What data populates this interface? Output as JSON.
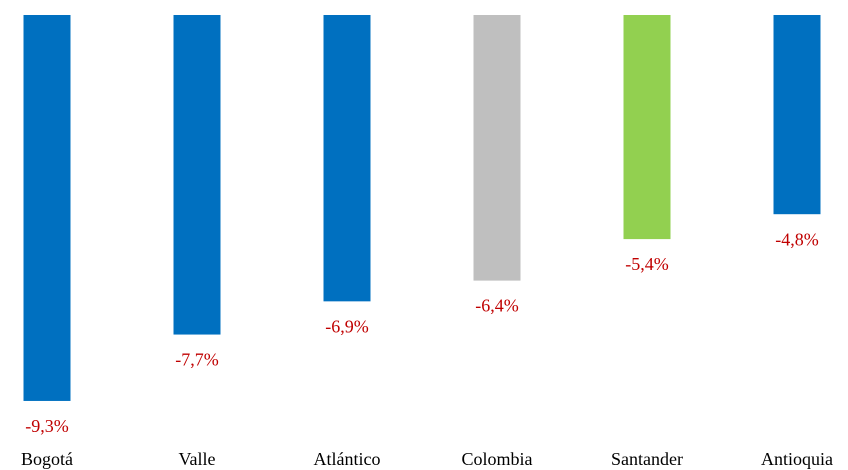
{
  "chart_data": {
    "type": "bar",
    "categories": [
      "Bogotá",
      "Valle",
      "Atlántico",
      "Colombia",
      "Santander",
      "Antioquia"
    ],
    "values": [
      -9.3,
      -7.7,
      -6.9,
      -6.4,
      -5.4,
      -4.8
    ],
    "value_labels": [
      "-9,3%",
      "-7,7%",
      "-6,9%",
      "-6,4%",
      "-5,4%",
      "-4,8%"
    ],
    "colors": [
      "#0070c0",
      "#0070c0",
      "#0070c0",
      "#bfbfbf",
      "#92d050",
      "#0070c0"
    ],
    "ylim": [
      -10,
      0
    ]
  }
}
